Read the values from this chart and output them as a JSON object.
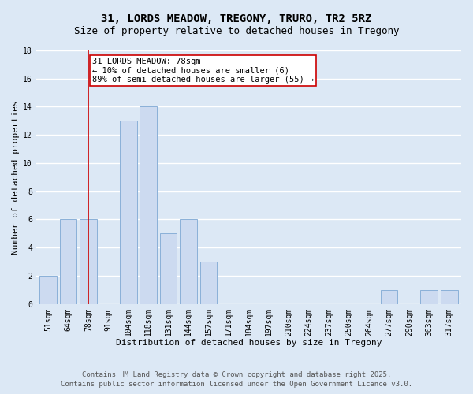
{
  "title": "31, LORDS MEADOW, TREGONY, TRURO, TR2 5RZ",
  "subtitle": "Size of property relative to detached houses in Tregony",
  "xlabel": "Distribution of detached houses by size in Tregony",
  "ylabel": "Number of detached properties",
  "bar_labels": [
    "51sqm",
    "64sqm",
    "78sqm",
    "91sqm",
    "104sqm",
    "118sqm",
    "131sqm",
    "144sqm",
    "157sqm",
    "171sqm",
    "184sqm",
    "197sqm",
    "210sqm",
    "224sqm",
    "237sqm",
    "250sqm",
    "264sqm",
    "277sqm",
    "290sqm",
    "303sqm",
    "317sqm"
  ],
  "bar_values": [
    2,
    6,
    6,
    0,
    13,
    14,
    5,
    6,
    3,
    0,
    0,
    0,
    0,
    0,
    0,
    0,
    0,
    1,
    0,
    1,
    1
  ],
  "bar_color": "#ccdaf0",
  "bar_edge_color": "#8ab0d8",
  "background_color": "#dce8f5",
  "grid_color": "#ffffff",
  "ylim": [
    0,
    18
  ],
  "yticks": [
    0,
    2,
    4,
    6,
    8,
    10,
    12,
    14,
    16,
    18
  ],
  "vline_x_index": 2,
  "vline_color": "#cc0000",
  "annotation_text": "31 LORDS MEADOW: 78sqm\n← 10% of detached houses are smaller (6)\n89% of semi-detached houses are larger (55) →",
  "annotation_box_color": "#ffffff",
  "annotation_box_edge_color": "#cc0000",
  "footnote1": "Contains HM Land Registry data © Crown copyright and database right 2025.",
  "footnote2": "Contains public sector information licensed under the Open Government Licence v3.0.",
  "title_fontsize": 10,
  "subtitle_fontsize": 9,
  "axis_label_fontsize": 8,
  "tick_fontsize": 7,
  "annotation_fontsize": 7.5,
  "footnote_fontsize": 6.5
}
